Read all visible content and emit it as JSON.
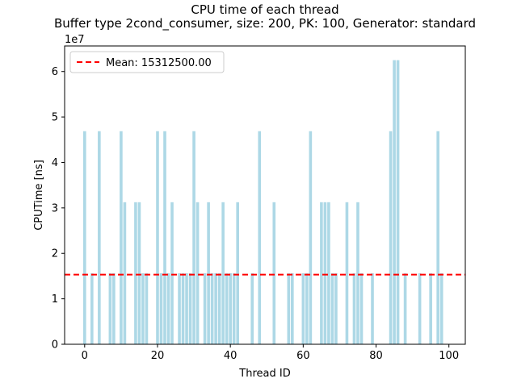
{
  "chart_data": {
    "type": "bar",
    "title": "CPU time of each thread",
    "subtitle": "Buffer type 2cond_consumer, size: 200, PK: 100, Generator: standard",
    "xlabel": "Thread ID",
    "ylabel": "CPUTime [ns]",
    "y_scale_label": "1e7",
    "xlim": [
      -5.5,
      104.5
    ],
    "ylim": [
      0,
      65625000
    ],
    "x_ticks": [
      0,
      20,
      40,
      60,
      80,
      100
    ],
    "x_tick_labels": [
      "0",
      "20",
      "40",
      "60",
      "80",
      "100"
    ],
    "y_ticks": [
      0,
      10000000,
      20000000,
      30000000,
      40000000,
      50000000,
      60000000
    ],
    "y_tick_labels": [
      "0",
      "1",
      "2",
      "3",
      "4",
      "5",
      "6"
    ],
    "grid": false,
    "legend_position": "top-left",
    "bar_color": "#add8e6",
    "x": [
      0,
      1,
      2,
      3,
      4,
      5,
      6,
      7,
      8,
      9,
      10,
      11,
      12,
      13,
      14,
      15,
      16,
      17,
      18,
      19,
      20,
      21,
      22,
      23,
      24,
      25,
      26,
      27,
      28,
      29,
      30,
      31,
      32,
      33,
      34,
      35,
      36,
      37,
      38,
      39,
      40,
      41,
      42,
      43,
      44,
      45,
      46,
      47,
      48,
      49,
      50,
      51,
      52,
      53,
      54,
      55,
      56,
      57,
      58,
      59,
      60,
      61,
      62,
      63,
      64,
      65,
      66,
      67,
      68,
      69,
      70,
      71,
      72,
      73,
      74,
      75,
      76,
      77,
      78,
      79,
      80,
      81,
      82,
      83,
      84,
      85,
      86,
      87,
      88,
      89,
      90,
      91,
      92,
      93,
      94,
      95,
      96,
      97,
      98,
      99
    ],
    "values": [
      46875000,
      0,
      15625000,
      0,
      46875000,
      0,
      0,
      15625000,
      15625000,
      0,
      46875000,
      31250000,
      0,
      0,
      31250000,
      31250000,
      15625000,
      15625000,
      0,
      0,
      46875000,
      15625000,
      46875000,
      15625000,
      31250000,
      0,
      15625000,
      15625000,
      15625000,
      15625000,
      46875000,
      31250000,
      0,
      15625000,
      31250000,
      15625000,
      15625000,
      15625000,
      31250000,
      15625000,
      15625000,
      15625000,
      31250000,
      0,
      0,
      0,
      15625000,
      0,
      46875000,
      0,
      0,
      0,
      31250000,
      0,
      0,
      0,
      15625000,
      15625000,
      0,
      0,
      15625000,
      15625000,
      46875000,
      0,
      0,
      31250000,
      31250000,
      31250000,
      15625000,
      15625000,
      0,
      0,
      31250000,
      0,
      15625000,
      31250000,
      15625000,
      0,
      0,
      15625000,
      0,
      0,
      0,
      0,
      46875000,
      62500000,
      62500000,
      0,
      15625000,
      0,
      0,
      0,
      15625000,
      0,
      0,
      15625000,
      0,
      46875000,
      15625000,
      0
    ],
    "mean_line": {
      "value": 15312500,
      "label": "Mean: 15312500.00",
      "color": "#ff0000",
      "style": "dashed"
    }
  }
}
